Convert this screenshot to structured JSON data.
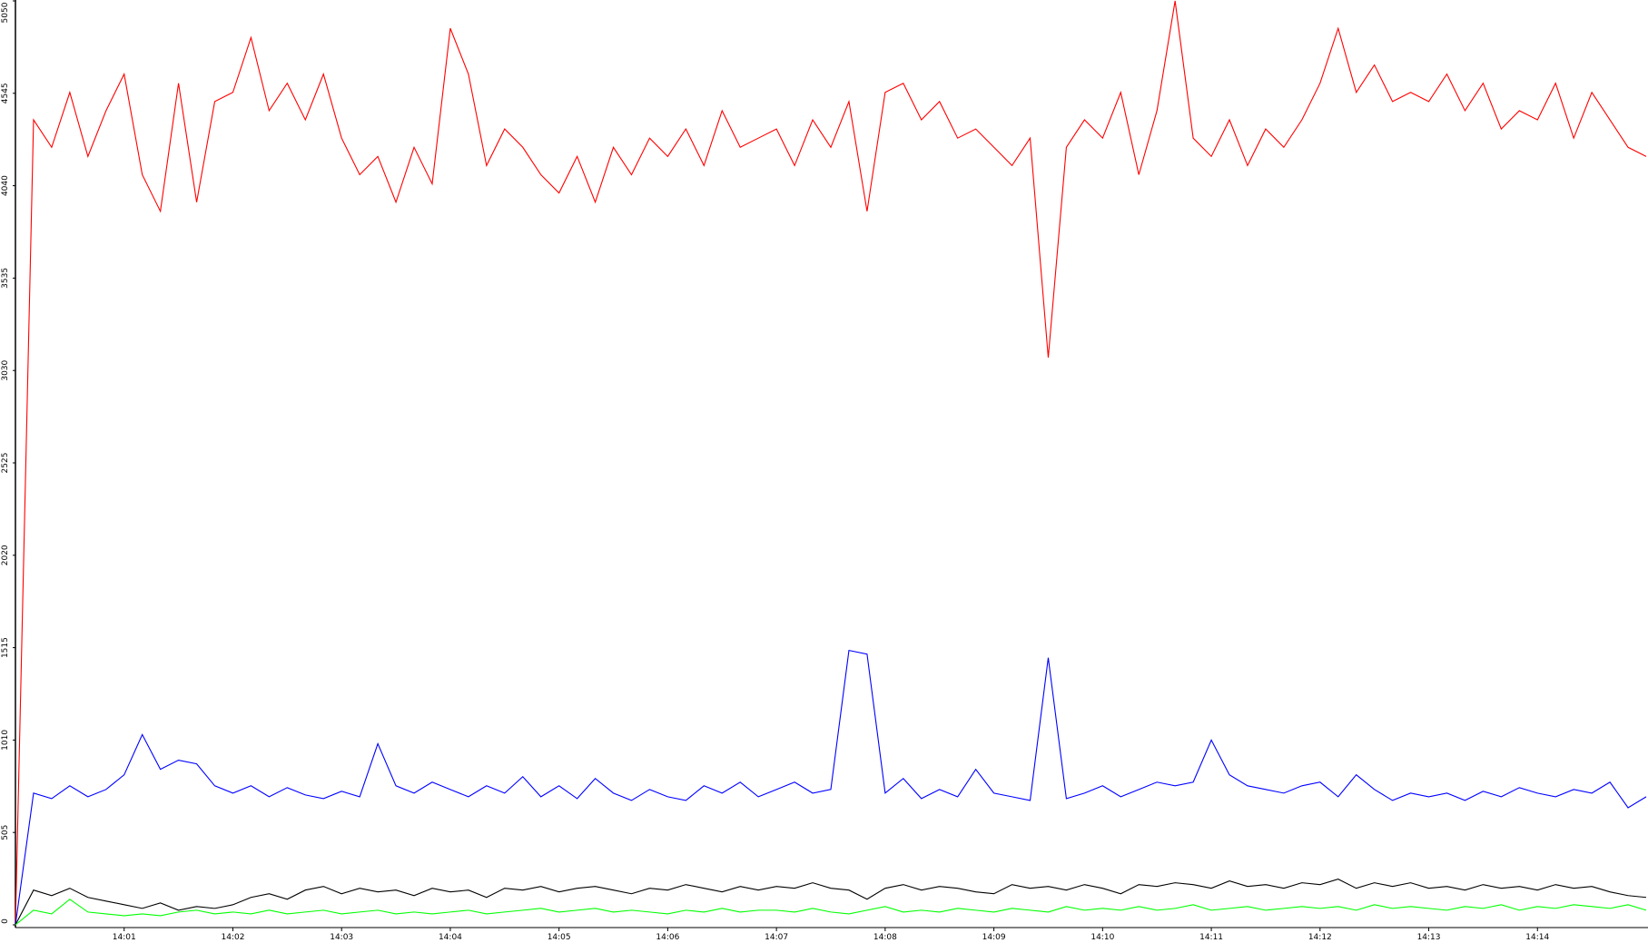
{
  "chart_data": {
    "type": "line",
    "x": [
      0,
      10,
      20,
      30,
      40,
      50,
      60,
      70,
      80,
      90,
      100,
      110,
      120,
      130,
      140,
      150,
      160,
      170,
      180,
      190,
      200,
      210,
      220,
      230,
      240,
      250,
      260,
      270,
      280,
      290,
      300,
      310,
      320,
      330,
      340,
      350,
      360,
      370,
      380,
      390,
      400,
      410,
      420,
      430,
      440,
      450,
      460,
      470,
      480,
      490,
      500,
      510,
      520,
      530,
      540,
      550,
      560,
      570,
      580,
      590,
      600,
      610,
      620,
      630,
      640,
      650,
      660,
      670,
      680,
      690,
      700,
      710,
      720,
      730,
      740,
      750,
      760,
      770,
      780,
      790,
      800,
      810,
      820,
      830,
      840,
      850,
      860,
      870,
      880,
      890,
      900
    ],
    "xlim": [
      0,
      900
    ],
    "xticks": [
      {
        "value": 60,
        "label": "14:01"
      },
      {
        "value": 120,
        "label": "14:02"
      },
      {
        "value": 180,
        "label": "14:03"
      },
      {
        "value": 240,
        "label": "14:04"
      },
      {
        "value": 300,
        "label": "14:05"
      },
      {
        "value": 360,
        "label": "14:06"
      },
      {
        "value": 420,
        "label": "14:07"
      },
      {
        "value": 480,
        "label": "14:08"
      },
      {
        "value": 540,
        "label": "14:09"
      },
      {
        "value": 600,
        "label": "14:10"
      },
      {
        "value": 660,
        "label": "14:11"
      },
      {
        "value": 720,
        "label": "14:12"
      },
      {
        "value": 780,
        "label": "14:13"
      },
      {
        "value": 840,
        "label": "14:14"
      }
    ],
    "ylim": [
      0,
      5050
    ],
    "yticks": [
      0,
      505,
      1010,
      1515,
      2020,
      2525,
      3030,
      3535,
      4040,
      4545,
      5050
    ],
    "series": [
      {
        "color": "#ff0000",
        "values": [
          0,
          4400,
          4250,
          4550,
          4200,
          4450,
          4650,
          4100,
          3900,
          4600,
          3950,
          4500,
          4550,
          4850,
          4450,
          4600,
          4400,
          4650,
          4300,
          4100,
          4200,
          3950,
          4250,
          4050,
          4900,
          4650,
          4150,
          4350,
          4250,
          4100,
          4000,
          4200,
          3950,
          4250,
          4100,
          4300,
          4200,
          4350,
          4150,
          4450,
          4250,
          4300,
          4350,
          4150,
          4400,
          4250,
          4500,
          3900,
          4550,
          4600,
          4400,
          4500,
          4300,
          4350,
          4250,
          4150,
          4300,
          3100,
          4250,
          4400,
          4300,
          4550,
          4100,
          4450,
          5050,
          4300,
          4200,
          4400,
          4150,
          4350,
          4250,
          4400,
          4600,
          4900,
          4550,
          4700,
          4500,
          4550,
          4500,
          4650,
          4450,
          4600,
          4350,
          4450,
          4400,
          4600,
          4300,
          4550,
          4400,
          4250,
          4200
        ]
      },
      {
        "color": "#0000ff",
        "values": [
          0,
          720,
          690,
          760,
          700,
          740,
          820,
          1040,
          850,
          900,
          880,
          760,
          720,
          760,
          700,
          750,
          710,
          690,
          730,
          700,
          990,
          760,
          720,
          780,
          740,
          700,
          760,
          720,
          810,
          700,
          760,
          690,
          800,
          720,
          680,
          740,
          700,
          680,
          760,
          720,
          780,
          700,
          740,
          780,
          720,
          740,
          1500,
          1480,
          720,
          800,
          690,
          740,
          700,
          850,
          720,
          700,
          680,
          1460,
          690,
          720,
          760,
          700,
          740,
          780,
          760,
          780,
          1010,
          820,
          760,
          740,
          720,
          760,
          780,
          700,
          820,
          740,
          680,
          720,
          700,
          720,
          680,
          730,
          700,
          750,
          720,
          700,
          740,
          720,
          780,
          640,
          700
        ]
      },
      {
        "color": "#000000",
        "values": [
          0,
          190,
          160,
          200,
          150,
          130,
          110,
          90,
          120,
          80,
          100,
          90,
          110,
          150,
          170,
          140,
          190,
          210,
          170,
          200,
          180,
          190,
          160,
          200,
          180,
          190,
          150,
          200,
          190,
          210,
          180,
          200,
          210,
          190,
          170,
          200,
          190,
          220,
          200,
          180,
          210,
          190,
          210,
          200,
          230,
          200,
          190,
          140,
          200,
          220,
          190,
          210,
          200,
          180,
          170,
          220,
          200,
          210,
          190,
          220,
          200,
          170,
          220,
          210,
          230,
          220,
          200,
          240,
          210,
          220,
          200,
          230,
          220,
          250,
          200,
          230,
          210,
          230,
          200,
          210,
          190,
          220,
          200,
          210,
          190,
          220,
          200,
          210,
          180,
          160,
          150
        ]
      },
      {
        "color": "#00ff00",
        "values": [
          0,
          80,
          60,
          140,
          70,
          60,
          50,
          60,
          50,
          70,
          80,
          60,
          70,
          60,
          80,
          60,
          70,
          80,
          60,
          70,
          80,
          60,
          70,
          60,
          70,
          80,
          60,
          70,
          80,
          90,
          70,
          80,
          90,
          70,
          80,
          70,
          60,
          80,
          70,
          90,
          70,
          80,
          80,
          70,
          90,
          70,
          60,
          80,
          100,
          70,
          80,
          70,
          90,
          80,
          70,
          90,
          80,
          70,
          100,
          80,
          90,
          80,
          100,
          80,
          90,
          110,
          80,
          90,
          100,
          80,
          90,
          100,
          90,
          100,
          80,
          110,
          90,
          100,
          90,
          80,
          100,
          90,
          110,
          80,
          100,
          90,
          110,
          100,
          90,
          110,
          80
        ]
      }
    ]
  }
}
